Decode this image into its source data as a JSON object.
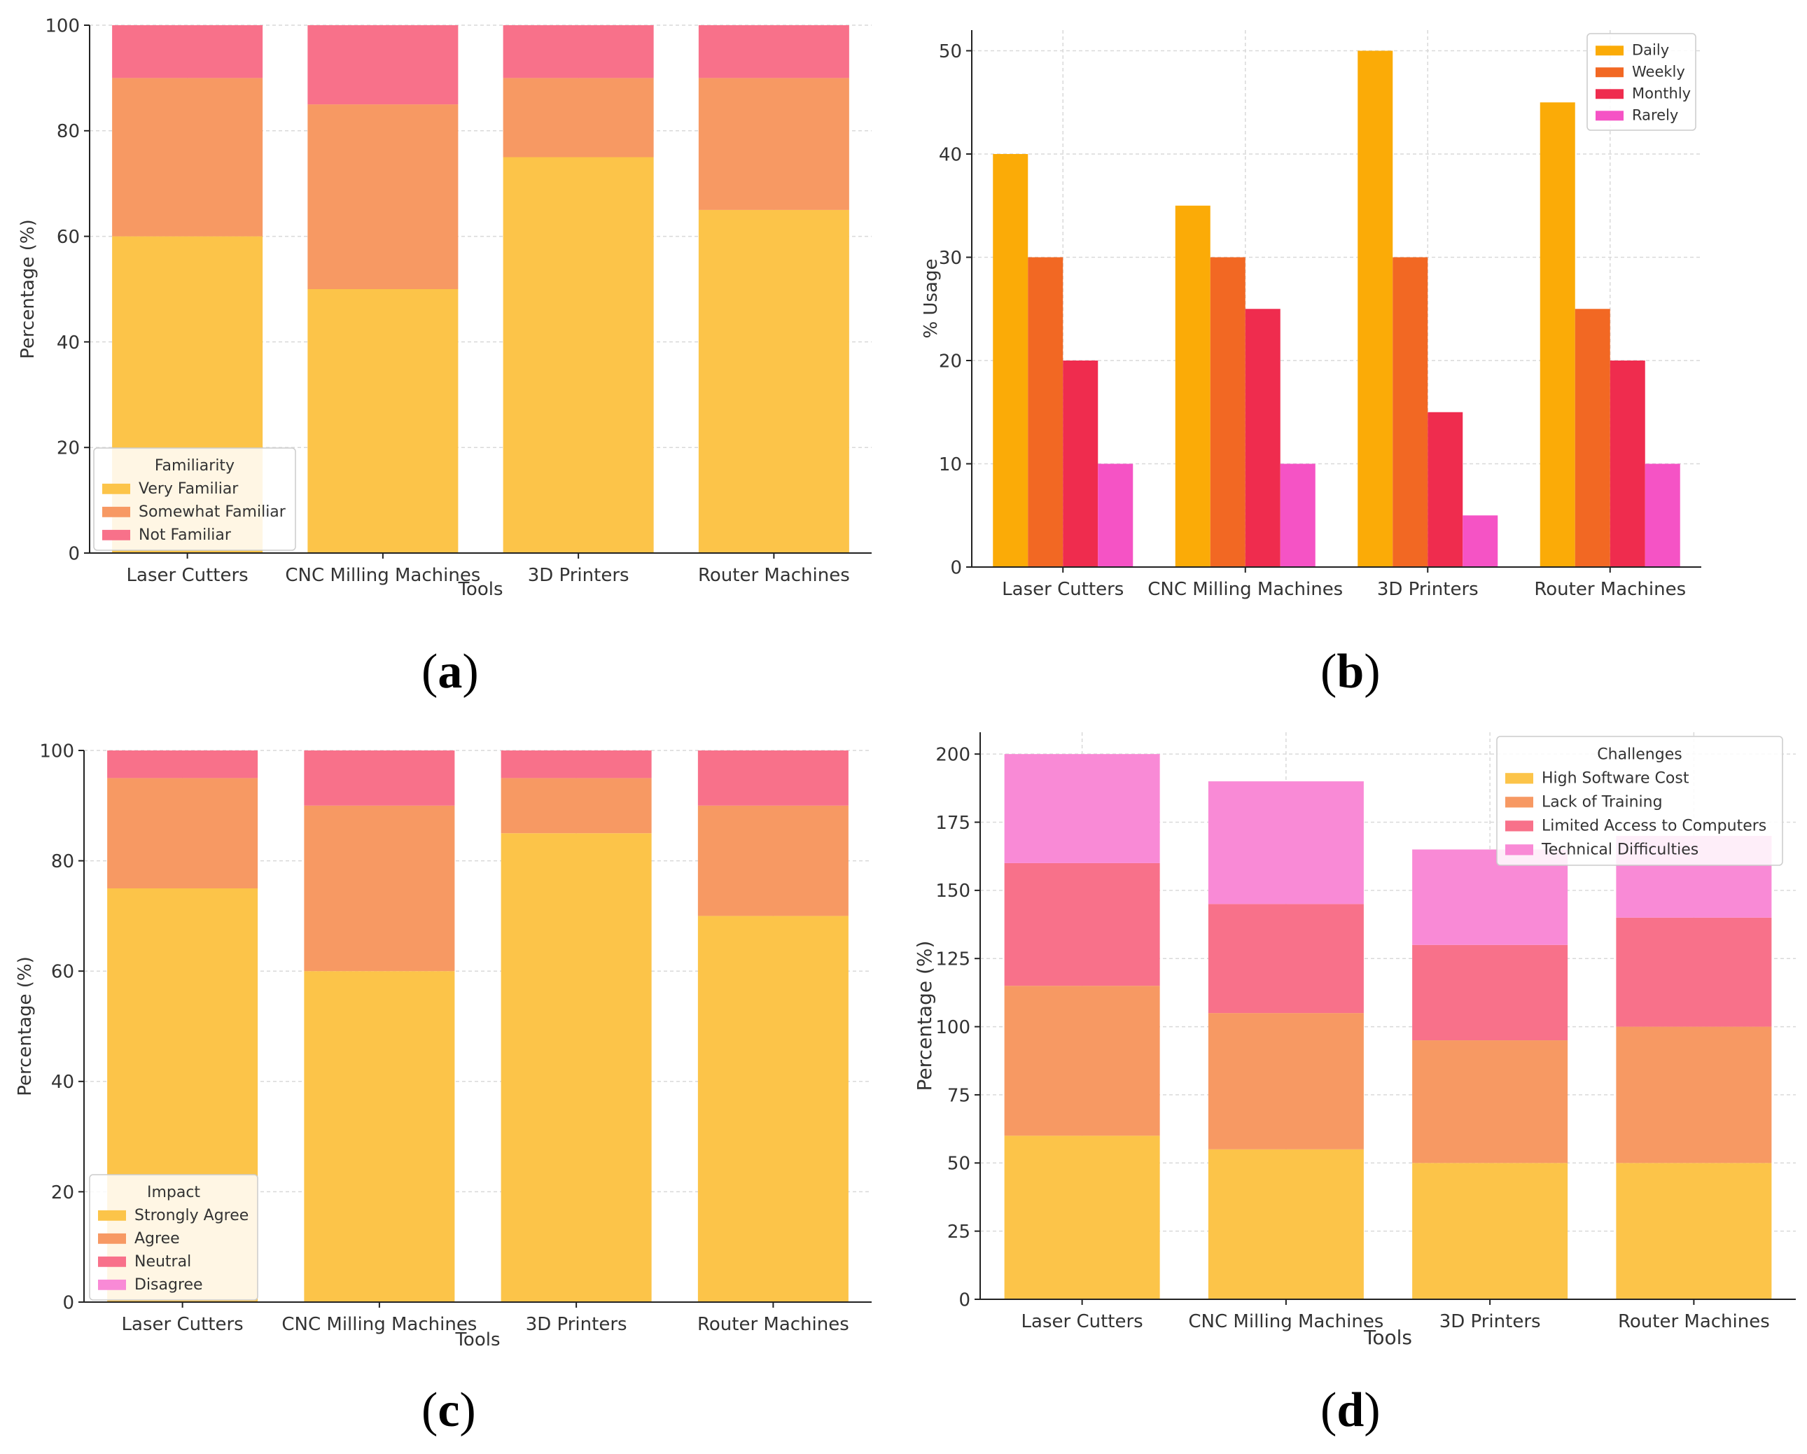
{
  "panel_labels": [
    {
      "open": "(",
      "letter": "a",
      "close": ")"
    },
    {
      "open": "(",
      "letter": "b",
      "close": ")"
    },
    {
      "open": "(",
      "letter": "c",
      "close": ")"
    },
    {
      "open": "(",
      "letter": "d",
      "close": ")"
    }
  ],
  "chart_data": [
    {
      "type": "bar",
      "stacked": true,
      "categories": [
        "Laser Cutters",
        "CNC Milling Machines",
        "3D Printers",
        "Router Machines"
      ],
      "series": [
        {
          "name": "Very Familiar",
          "values": [
            60,
            50,
            75,
            65
          ],
          "color": "#fcc449"
        },
        {
          "name": "Somewhat Familiar",
          "values": [
            30,
            35,
            15,
            25
          ],
          "color": "#f79963"
        },
        {
          "name": "Not Familiar",
          "values": [
            10,
            15,
            10,
            10
          ],
          "color": "#f8718a"
        }
      ],
      "xlabel": "Tools",
      "ylabel": "Percentage (%)",
      "legend_title": "Familiarity",
      "legend_position": "lower-left",
      "ylim": [
        0,
        100
      ],
      "yticks": [
        0,
        20,
        40,
        60,
        80,
        100
      ],
      "grid": true
    },
    {
      "type": "bar",
      "stacked": false,
      "categories": [
        "Laser Cutters",
        "CNC Milling Machines",
        "3D Printers",
        "Router Machines"
      ],
      "series": [
        {
          "name": "Daily",
          "values": [
            40,
            35,
            50,
            45
          ],
          "color": "#fbab07"
        },
        {
          "name": "Weekly",
          "values": [
            30,
            30,
            30,
            25
          ],
          "color": "#f26823"
        },
        {
          "name": "Monthly",
          "values": [
            20,
            25,
            15,
            20
          ],
          "color": "#ef2c4e"
        },
        {
          "name": "Rarely",
          "values": [
            10,
            10,
            5,
            10
          ],
          "color": "#f553c5"
        }
      ],
      "xlabel": "",
      "ylabel": "% Usage",
      "legend_title": "",
      "legend_position": "upper-right",
      "ylim": [
        0,
        52
      ],
      "yticks": [
        0,
        10,
        20,
        30,
        40,
        50
      ],
      "grid": true
    },
    {
      "type": "bar",
      "stacked": true,
      "categories": [
        "Laser Cutters",
        "CNC Milling Machines",
        "3D Printers",
        "Router Machines"
      ],
      "series": [
        {
          "name": "Strongly Agree",
          "values": [
            75,
            60,
            85,
            70
          ],
          "color": "#fcc449"
        },
        {
          "name": "Agree",
          "values": [
            20,
            30,
            10,
            20
          ],
          "color": "#f79963"
        },
        {
          "name": "Neutral",
          "values": [
            5,
            10,
            5,
            10
          ],
          "color": "#f8718a"
        },
        {
          "name": "Disagree",
          "values": [
            0,
            0,
            0,
            0
          ],
          "color": "#f98ad6"
        }
      ],
      "xlabel": "Tools",
      "ylabel": "Percentage (%)",
      "legend_title": "Impact",
      "legend_position": "lower-left",
      "ylim": [
        0,
        100
      ],
      "yticks": [
        0,
        20,
        40,
        60,
        80,
        100
      ],
      "grid": true
    },
    {
      "type": "bar",
      "stacked": true,
      "categories": [
        "Laser Cutters",
        "CNC Milling Machines",
        "3D Printers",
        "Router Machines"
      ],
      "series": [
        {
          "name": "High Software Cost",
          "values": [
            60,
            55,
            50,
            50
          ],
          "color": "#fcc449"
        },
        {
          "name": "Lack of Training",
          "values": [
            55,
            50,
            45,
            50
          ],
          "color": "#f79963"
        },
        {
          "name": "Limited Access to Computers",
          "values": [
            45,
            40,
            35,
            40
          ],
          "color": "#f8718a"
        },
        {
          "name": "Technical Difficulties",
          "values": [
            40,
            45,
            35,
            30
          ],
          "color": "#f98ad6"
        }
      ],
      "xlabel": "Tools",
      "ylabel": "Percentage (%)",
      "legend_title": "Challenges",
      "legend_position": "upper-right",
      "ylim": [
        0,
        208
      ],
      "yticks": [
        0,
        25,
        50,
        75,
        100,
        125,
        150,
        175,
        200
      ],
      "grid": true
    }
  ]
}
